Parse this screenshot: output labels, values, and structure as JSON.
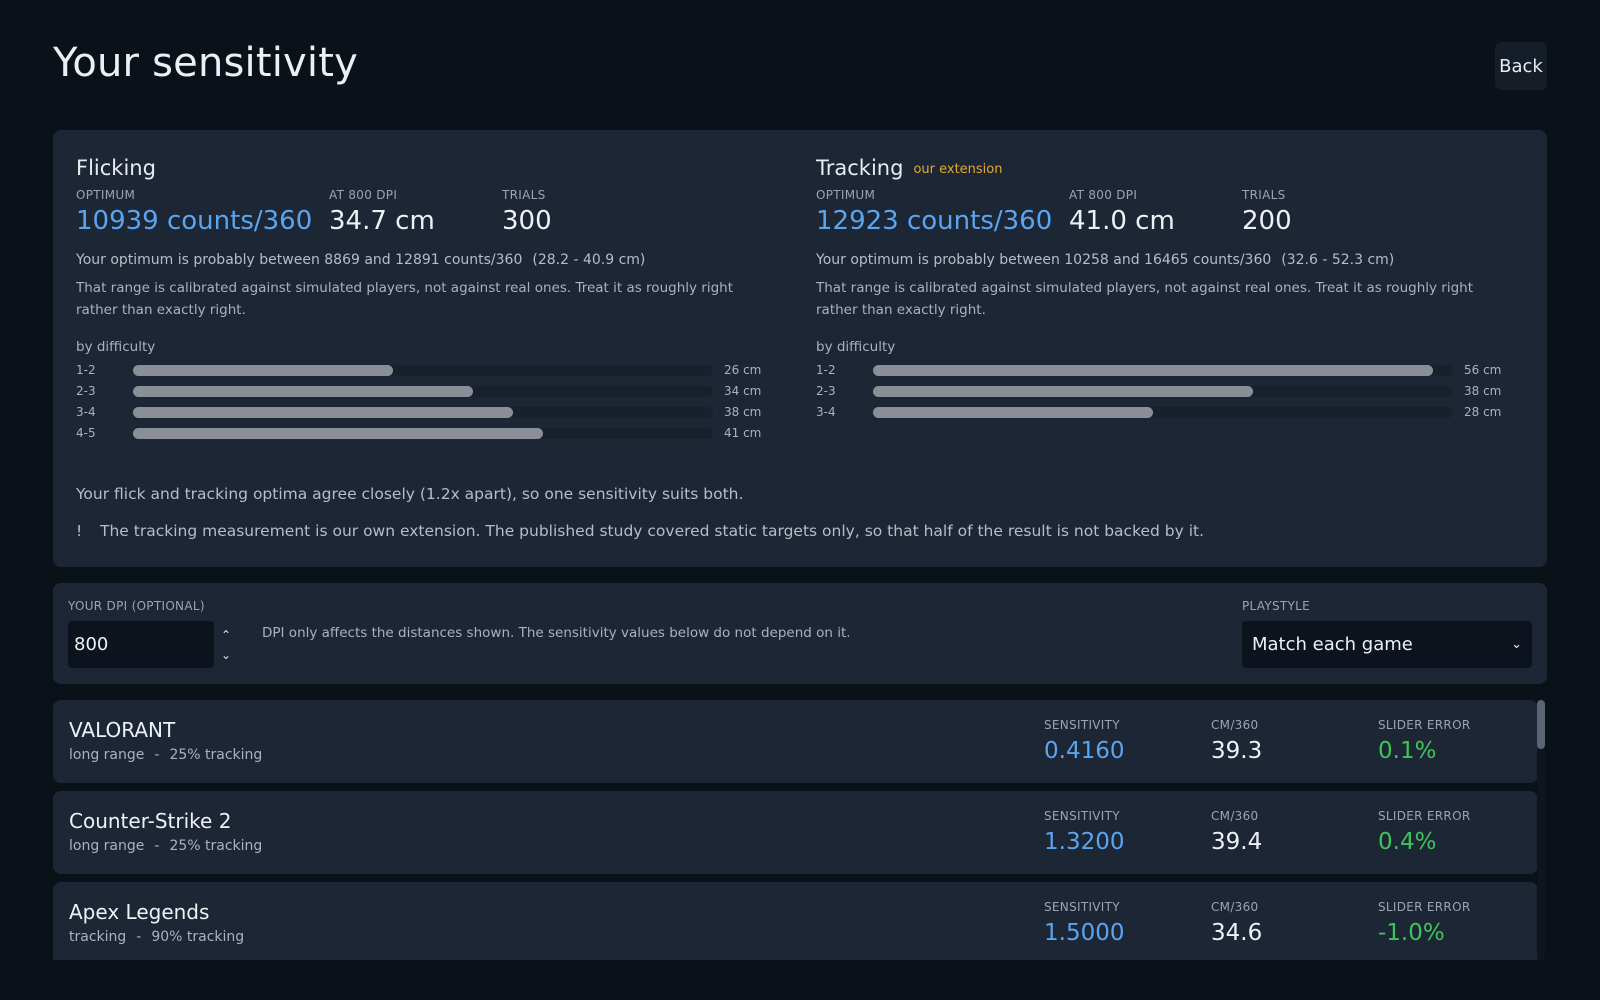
{
  "page": {
    "title": "Your sensitivity",
    "back_label": "Back"
  },
  "results": {
    "flicking": {
      "title": "Flicking",
      "tag": "",
      "optimum_label": "OPTIMUM",
      "optimum_value": "10939 counts/360",
      "at_dpi_label": "AT 800 DPI",
      "at_dpi_value": "34.7 cm",
      "trials_label": "TRIALS",
      "trials_value": "300",
      "range_text": "Your optimum is probably between 8869 and 12891 counts/360",
      "range_cm": "(28.2 - 40.9 cm)",
      "note": "That range is calibrated against simulated players, not against real ones. Treat it as roughly right rather than exactly right.",
      "by_difficulty_label": "by difficulty",
      "difficulty": [
        {
          "label": "1-2",
          "value": "26 cm",
          "cm": 26
        },
        {
          "label": "2-3",
          "value": "34 cm",
          "cm": 34
        },
        {
          "label": "3-4",
          "value": "38 cm",
          "cm": 38
        },
        {
          "label": "4-5",
          "value": "41 cm",
          "cm": 41
        }
      ]
    },
    "tracking": {
      "title": "Tracking",
      "tag": "our extension",
      "optimum_label": "OPTIMUM",
      "optimum_value": "12923 counts/360",
      "at_dpi_label": "AT 800 DPI",
      "at_dpi_value": "41.0 cm",
      "trials_label": "TRIALS",
      "trials_value": "200",
      "range_text": "Your optimum is probably between 10258 and 16465 counts/360",
      "range_cm": "(32.6 - 52.3 cm)",
      "note": "That range is calibrated against simulated players, not against real ones. Treat it as roughly right rather than exactly right.",
      "by_difficulty_label": "by difficulty",
      "difficulty": [
        {
          "label": "1-2",
          "value": "56 cm",
          "cm": 56
        },
        {
          "label": "2-3",
          "value": "38 cm",
          "cm": 38
        },
        {
          "label": "3-4",
          "value": "28 cm",
          "cm": 28
        }
      ]
    },
    "agreement": "Your flick and tracking optima agree closely (1.2x apart), so one sensitivity suits both.",
    "warning_mark": "!",
    "warning": "The tracking measurement is our own extension. The published study covered static targets only, so that half of the result is not backed by it."
  },
  "settings": {
    "dpi_label": "YOUR DPI (OPTIONAL)",
    "dpi_value": "800",
    "dpi_note": "DPI only affects the distances shown. The sensitivity values below do not depend on it.",
    "playstyle_label": "PLAYSTYLE",
    "playstyle_value": "Match each game"
  },
  "games_labels": {
    "sensitivity": "SENSITIVITY",
    "cm360": "CM/360",
    "slider_error": "SLIDER ERROR"
  },
  "games": [
    {
      "name": "VALORANT",
      "range": "long range",
      "sep": "-",
      "tracking": "25% tracking",
      "sensitivity": "0.4160",
      "cm360": "39.3",
      "error": "0.1%"
    },
    {
      "name": "Counter-Strike 2",
      "range": "long range",
      "sep": "-",
      "tracking": "25% tracking",
      "sensitivity": "1.3200",
      "cm360": "39.4",
      "error": "0.4%"
    },
    {
      "name": "Apex Legends",
      "range": "tracking",
      "sep": "-",
      "tracking": "90% tracking",
      "sensitivity": "1.5000",
      "cm360": "34.6",
      "error": "-1.0%"
    }
  ],
  "colors": {
    "accent": "#5aa5f0",
    "positive": "#3ec45a",
    "tag": "#e3a82b",
    "bar": "#8a8f97"
  },
  "icons": {
    "dpi_stepper": [
      "chevron-up-icon",
      "chevron-down-icon"
    ],
    "playstyle": "chevron-down-icon"
  }
}
